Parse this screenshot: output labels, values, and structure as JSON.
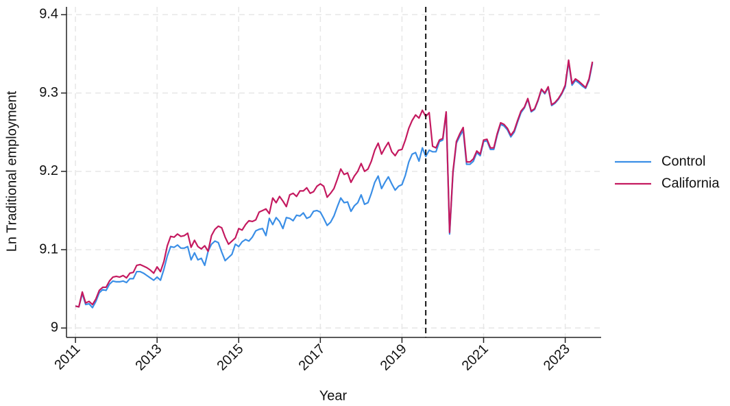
{
  "chart_data": {
    "type": "line",
    "x_label": "Year",
    "y_label": "Ln Traditional employment",
    "xlim": [
      2010.78,
      2023.88
    ],
    "ylim": [
      8.988,
      9.41
    ],
    "xticks": [
      2011,
      2013,
      2015,
      2017,
      2019,
      2021,
      2023
    ],
    "yticks": [
      9,
      9.1,
      9.2,
      9.3,
      9.4
    ],
    "grid": true,
    "legend": "right",
    "vline_x": 2019.583,
    "x": [
      2011,
      2011.083,
      2011.167,
      2011.25,
      2011.333,
      2011.417,
      2011.5,
      2011.583,
      2011.667,
      2011.75,
      2011.833,
      2011.917,
      2012,
      2012.083,
      2012.167,
      2012.25,
      2012.333,
      2012.417,
      2012.5,
      2012.583,
      2012.667,
      2012.75,
      2012.833,
      2012.917,
      2013,
      2013.083,
      2013.167,
      2013.25,
      2013.333,
      2013.417,
      2013.5,
      2013.583,
      2013.667,
      2013.75,
      2013.833,
      2013.917,
      2014,
      2014.083,
      2014.167,
      2014.25,
      2014.333,
      2014.417,
      2014.5,
      2014.583,
      2014.667,
      2014.75,
      2014.833,
      2014.917,
      2015,
      2015.083,
      2015.167,
      2015.25,
      2015.333,
      2015.417,
      2015.5,
      2015.583,
      2015.667,
      2015.75,
      2015.833,
      2015.917,
      2016,
      2016.083,
      2016.167,
      2016.25,
      2016.333,
      2016.417,
      2016.5,
      2016.583,
      2016.667,
      2016.75,
      2016.833,
      2016.917,
      2017,
      2017.083,
      2017.167,
      2017.25,
      2017.333,
      2017.417,
      2017.5,
      2017.583,
      2017.667,
      2017.75,
      2017.833,
      2017.917,
      2018,
      2018.083,
      2018.167,
      2018.25,
      2018.333,
      2018.417,
      2018.5,
      2018.583,
      2018.667,
      2018.75,
      2018.833,
      2018.917,
      2019,
      2019.083,
      2019.167,
      2019.25,
      2019.333,
      2019.417,
      2019.5,
      2019.583,
      2019.667,
      2019.75,
      2019.833,
      2019.917,
      2020,
      2020.083,
      2020.167,
      2020.25,
      2020.333,
      2020.417,
      2020.5,
      2020.583,
      2020.667,
      2020.75,
      2020.833,
      2020.917,
      2021,
      2021.083,
      2021.167,
      2021.25,
      2021.333,
      2021.417,
      2021.5,
      2021.583,
      2021.667,
      2021.75,
      2021.833,
      2021.917,
      2022,
      2022.083,
      2022.167,
      2022.25,
      2022.333,
      2022.417,
      2022.5,
      2022.583,
      2022.667,
      2022.75,
      2022.833,
      2022.917,
      2023,
      2023.083,
      2023.167,
      2023.25,
      2023.333,
      2023.417,
      2023.5,
      2023.583,
      2023.667
    ],
    "series": [
      {
        "name": "Control",
        "color": "#3a8ee6",
        "values": [
          9.028,
          9.027,
          9.044,
          9.03,
          9.031,
          9.026,
          9.034,
          9.045,
          9.049,
          9.048,
          9.056,
          9.06,
          9.059,
          9.059,
          9.06,
          9.058,
          9.063,
          9.063,
          9.072,
          9.072,
          9.07,
          9.067,
          9.064,
          9.061,
          9.065,
          9.061,
          9.075,
          9.092,
          9.104,
          9.103,
          9.106,
          9.102,
          9.102,
          9.104,
          9.087,
          9.096,
          9.087,
          9.089,
          9.08,
          9.098,
          9.107,
          9.111,
          9.109,
          9.097,
          9.086,
          9.09,
          9.094,
          9.107,
          9.104,
          9.11,
          9.113,
          9.111,
          9.116,
          9.124,
          9.126,
          9.127,
          9.118,
          9.14,
          9.132,
          9.141,
          9.136,
          9.127,
          9.141,
          9.14,
          9.137,
          9.144,
          9.143,
          9.147,
          9.14,
          9.142,
          9.149,
          9.15,
          9.148,
          9.14,
          9.131,
          9.135,
          9.143,
          9.155,
          9.166,
          9.16,
          9.161,
          9.149,
          9.156,
          9.16,
          9.17,
          9.158,
          9.16,
          9.172,
          9.186,
          9.194,
          9.178,
          9.186,
          9.193,
          9.184,
          9.176,
          9.181,
          9.183,
          9.195,
          9.212,
          9.222,
          9.224,
          9.213,
          9.23,
          9.219,
          9.227,
          9.225,
          9.225,
          9.238,
          9.24,
          9.275,
          9.12,
          9.198,
          9.236,
          9.245,
          9.252,
          9.209,
          9.209,
          9.213,
          9.224,
          9.22,
          9.238,
          9.239,
          9.228,
          9.228,
          9.246,
          9.26,
          9.258,
          9.253,
          9.244,
          9.25,
          9.263,
          9.275,
          9.281,
          9.292,
          9.276,
          9.279,
          9.29,
          9.304,
          9.299,
          9.307,
          9.284,
          9.287,
          9.292,
          9.299,
          9.308,
          9.34,
          9.31,
          9.316,
          9.313,
          9.309,
          9.306,
          9.316,
          9.338
        ]
      },
      {
        "name": "California",
        "color": "#c4195f",
        "values": [
          9.028,
          9.027,
          9.046,
          9.032,
          9.034,
          9.03,
          9.037,
          9.048,
          9.052,
          9.052,
          9.06,
          9.065,
          9.066,
          9.065,
          9.067,
          9.064,
          9.07,
          9.071,
          9.08,
          9.081,
          9.079,
          9.077,
          9.074,
          9.07,
          9.078,
          9.072,
          9.085,
          9.105,
          9.117,
          9.116,
          9.12,
          9.117,
          9.118,
          9.121,
          9.103,
          9.112,
          9.104,
          9.101,
          9.105,
          9.098,
          9.118,
          9.126,
          9.13,
          9.128,
          9.116,
          9.107,
          9.111,
          9.115,
          9.127,
          9.125,
          9.132,
          9.137,
          9.136,
          9.138,
          9.148,
          9.15,
          9.152,
          9.146,
          9.166,
          9.16,
          9.168,
          9.162,
          9.155,
          9.17,
          9.172,
          9.168,
          9.175,
          9.175,
          9.179,
          9.172,
          9.174,
          9.181,
          9.184,
          9.181,
          9.167,
          9.172,
          9.178,
          9.19,
          9.203,
          9.196,
          9.198,
          9.186,
          9.194,
          9.2,
          9.21,
          9.2,
          9.203,
          9.213,
          9.227,
          9.236,
          9.222,
          9.23,
          9.237,
          9.225,
          9.22,
          9.227,
          9.228,
          9.24,
          9.255,
          9.265,
          9.272,
          9.268,
          9.278,
          9.27,
          9.275,
          9.232,
          9.23,
          9.24,
          9.242,
          9.276,
          9.122,
          9.2,
          9.238,
          9.248,
          9.256,
          9.212,
          9.212,
          9.216,
          9.226,
          9.222,
          9.24,
          9.241,
          9.23,
          9.23,
          9.248,
          9.262,
          9.26,
          9.255,
          9.246,
          9.252,
          9.265,
          9.277,
          9.282,
          9.293,
          9.277,
          9.28,
          9.291,
          9.305,
          9.3,
          9.308,
          9.285,
          9.288,
          9.293,
          9.3,
          9.31,
          9.342,
          9.312,
          9.318,
          9.315,
          9.311,
          9.307,
          9.318,
          9.34
        ]
      }
    ]
  }
}
